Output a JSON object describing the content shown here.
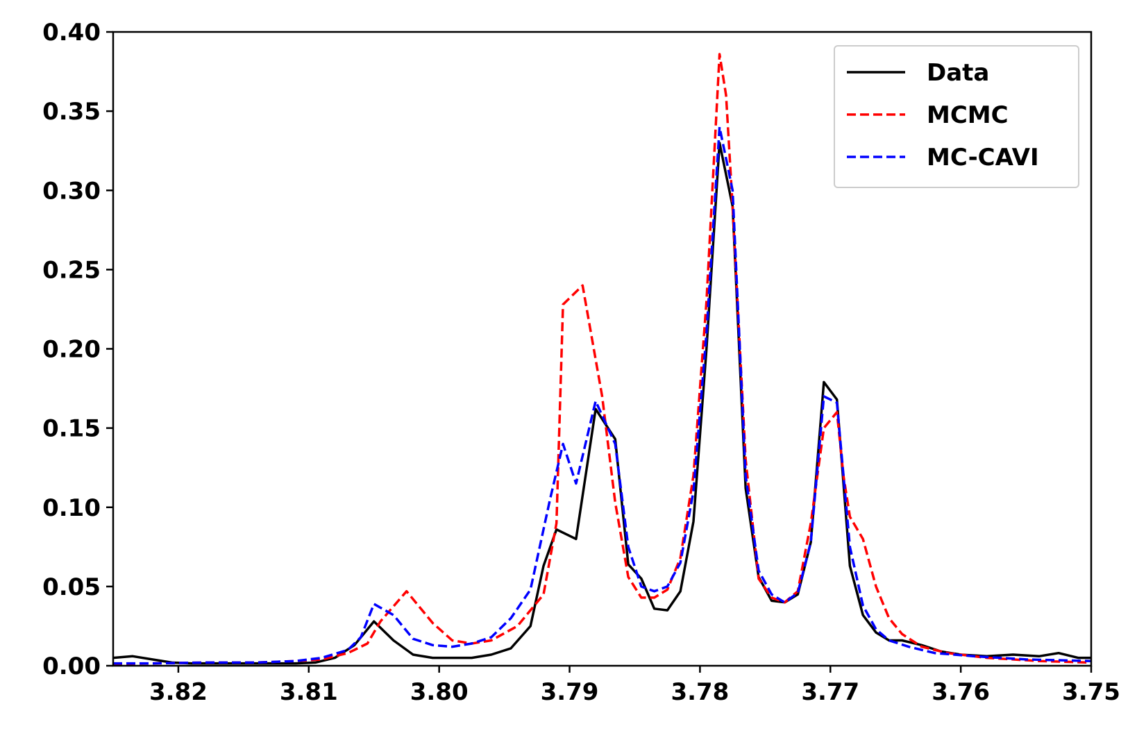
{
  "chart_data": {
    "type": "line",
    "title": "",
    "xlabel": "",
    "ylabel": "",
    "x_axis_reversed": true,
    "xlim": [
      3.825,
      3.75
    ],
    "ylim": [
      0,
      0.4
    ],
    "x_ticks": [
      "3.82",
      "3.81",
      "3.80",
      "3.79",
      "3.78",
      "3.77",
      "3.76",
      "3.75"
    ],
    "x_tick_values": [
      3.82,
      3.81,
      3.8,
      3.79,
      3.78,
      3.77,
      3.76,
      3.75
    ],
    "y_ticks": [
      "0.00",
      "0.05",
      "0.10",
      "0.15",
      "0.20",
      "0.25",
      "0.30",
      "0.35",
      "0.40"
    ],
    "y_tick_values": [
      0,
      0.05,
      0.1,
      0.15,
      0.2,
      0.25,
      0.3,
      0.35,
      0.4
    ],
    "grid": false,
    "legend_position": "top-right",
    "series": [
      {
        "name": "Data",
        "color": "#000000",
        "dash": "solid",
        "points": [
          [
            3.825,
            0.005
          ],
          [
            3.8235,
            0.006
          ],
          [
            3.822,
            0.004
          ],
          [
            3.8205,
            0.002
          ],
          [
            3.819,
            0.0015
          ],
          [
            3.817,
            0.0015
          ],
          [
            3.815,
            0.0015
          ],
          [
            3.813,
            0.0015
          ],
          [
            3.811,
            0.0015
          ],
          [
            3.8095,
            0.002
          ],
          [
            3.808,
            0.005
          ],
          [
            3.8065,
            0.013
          ],
          [
            3.805,
            0.028
          ],
          [
            3.8035,
            0.016
          ],
          [
            3.802,
            0.007
          ],
          [
            3.8005,
            0.005
          ],
          [
            3.799,
            0.005
          ],
          [
            3.7975,
            0.005
          ],
          [
            3.796,
            0.007
          ],
          [
            3.7945,
            0.011
          ],
          [
            3.793,
            0.025
          ],
          [
            3.792,
            0.063
          ],
          [
            3.791,
            0.086
          ],
          [
            3.7895,
            0.08
          ],
          [
            3.788,
            0.162
          ],
          [
            3.7865,
            0.143
          ],
          [
            3.7855,
            0.064
          ],
          [
            3.7845,
            0.055
          ],
          [
            3.7835,
            0.036
          ],
          [
            3.7825,
            0.035
          ],
          [
            3.7815,
            0.047
          ],
          [
            3.7805,
            0.091
          ],
          [
            3.7795,
            0.2
          ],
          [
            3.7785,
            0.33
          ],
          [
            3.7775,
            0.29
          ],
          [
            3.7765,
            0.112
          ],
          [
            3.7755,
            0.056
          ],
          [
            3.7745,
            0.041
          ],
          [
            3.7735,
            0.04
          ],
          [
            3.7725,
            0.045
          ],
          [
            3.7715,
            0.078
          ],
          [
            3.7705,
            0.179
          ],
          [
            3.7695,
            0.168
          ],
          [
            3.7685,
            0.063
          ],
          [
            3.7675,
            0.032
          ],
          [
            3.7665,
            0.021
          ],
          [
            3.7655,
            0.016
          ],
          [
            3.7645,
            0.016
          ],
          [
            3.763,
            0.013
          ],
          [
            3.7615,
            0.009
          ],
          [
            3.76,
            0.007
          ],
          [
            3.758,
            0.006
          ],
          [
            3.756,
            0.007
          ],
          [
            3.754,
            0.006
          ],
          [
            3.7525,
            0.008
          ],
          [
            3.751,
            0.005
          ],
          [
            3.75,
            0.005
          ]
        ]
      },
      {
        "name": "MCMC",
        "color": "#ff0000",
        "dash": "dashed",
        "points": [
          [
            3.825,
            0.001
          ],
          [
            3.822,
            0.0015
          ],
          [
            3.818,
            0.002
          ],
          [
            3.814,
            0.002
          ],
          [
            3.811,
            0.003
          ],
          [
            3.809,
            0.004
          ],
          [
            3.807,
            0.008
          ],
          [
            3.8055,
            0.014
          ],
          [
            3.8045,
            0.028
          ],
          [
            3.8025,
            0.047
          ],
          [
            3.8005,
            0.027
          ],
          [
            3.799,
            0.016
          ],
          [
            3.7975,
            0.014
          ],
          [
            3.796,
            0.016
          ],
          [
            3.794,
            0.025
          ],
          [
            3.792,
            0.045
          ],
          [
            3.791,
            0.09
          ],
          [
            3.7905,
            0.228
          ],
          [
            3.789,
            0.24
          ],
          [
            3.7875,
            0.17
          ],
          [
            3.7865,
            0.103
          ],
          [
            3.7855,
            0.056
          ],
          [
            3.7845,
            0.043
          ],
          [
            3.7835,
            0.043
          ],
          [
            3.7825,
            0.048
          ],
          [
            3.7815,
            0.068
          ],
          [
            3.7805,
            0.12
          ],
          [
            3.7795,
            0.23
          ],
          [
            3.7785,
            0.386
          ],
          [
            3.778,
            0.36
          ],
          [
            3.7775,
            0.29
          ],
          [
            3.7765,
            0.13
          ],
          [
            3.7755,
            0.055
          ],
          [
            3.7745,
            0.043
          ],
          [
            3.7735,
            0.04
          ],
          [
            3.7725,
            0.047
          ],
          [
            3.7715,
            0.09
          ],
          [
            3.7705,
            0.15
          ],
          [
            3.7695,
            0.16
          ],
          [
            3.769,
            0.12
          ],
          [
            3.7685,
            0.094
          ],
          [
            3.7675,
            0.08
          ],
          [
            3.7665,
            0.05
          ],
          [
            3.7655,
            0.03
          ],
          [
            3.7645,
            0.02
          ],
          [
            3.763,
            0.012
          ],
          [
            3.761,
            0.008
          ],
          [
            3.758,
            0.005
          ],
          [
            3.754,
            0.003
          ],
          [
            3.75,
            0.002
          ]
        ]
      },
      {
        "name": "MC-CAVI",
        "color": "#0000ff",
        "dash": "dashed",
        "points": [
          [
            3.825,
            0.0015
          ],
          [
            3.822,
            0.0015
          ],
          [
            3.818,
            0.002
          ],
          [
            3.814,
            0.002
          ],
          [
            3.811,
            0.003
          ],
          [
            3.809,
            0.005
          ],
          [
            3.807,
            0.01
          ],
          [
            3.806,
            0.018
          ],
          [
            3.805,
            0.039
          ],
          [
            3.8035,
            0.032
          ],
          [
            3.802,
            0.017
          ],
          [
            3.8005,
            0.013
          ],
          [
            3.799,
            0.012
          ],
          [
            3.7975,
            0.014
          ],
          [
            3.796,
            0.018
          ],
          [
            3.7945,
            0.03
          ],
          [
            3.793,
            0.048
          ],
          [
            3.7915,
            0.105
          ],
          [
            3.7905,
            0.14
          ],
          [
            3.7895,
            0.115
          ],
          [
            3.788,
            0.167
          ],
          [
            3.7865,
            0.14
          ],
          [
            3.7855,
            0.075
          ],
          [
            3.7845,
            0.05
          ],
          [
            3.7835,
            0.047
          ],
          [
            3.7825,
            0.05
          ],
          [
            3.7815,
            0.065
          ],
          [
            3.7805,
            0.11
          ],
          [
            3.7795,
            0.21
          ],
          [
            3.7785,
            0.34
          ],
          [
            3.7775,
            0.3
          ],
          [
            3.7765,
            0.12
          ],
          [
            3.7755,
            0.06
          ],
          [
            3.7745,
            0.045
          ],
          [
            3.7735,
            0.04
          ],
          [
            3.7725,
            0.046
          ],
          [
            3.7715,
            0.078
          ],
          [
            3.7705,
            0.17
          ],
          [
            3.7695,
            0.166
          ],
          [
            3.7685,
            0.075
          ],
          [
            3.7675,
            0.038
          ],
          [
            3.7665,
            0.023
          ],
          [
            3.7655,
            0.016
          ],
          [
            3.764,
            0.012
          ],
          [
            3.762,
            0.008
          ],
          [
            3.759,
            0.006
          ],
          [
            3.755,
            0.004
          ],
          [
            3.75,
            0.003
          ]
        ]
      }
    ]
  }
}
